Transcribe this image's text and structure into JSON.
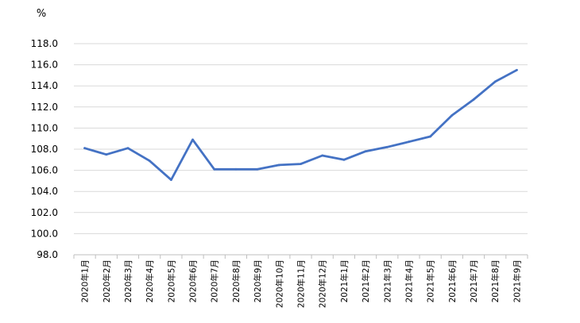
{
  "chart_data": {
    "type": "line",
    "unit_label": "%",
    "title": "",
    "xlabel": "",
    "ylabel": "",
    "ylim": [
      98.0,
      118.0
    ],
    "y_ticks": [
      "98.0",
      "100.0",
      "102.0",
      "104.0",
      "106.0",
      "108.0",
      "110.0",
      "112.0",
      "114.0",
      "116.0",
      "118.0"
    ],
    "categories": [
      "2020年1月",
      "2020年2月",
      "2020年3月",
      "2020年4月",
      "2020年5月",
      "2020年6月",
      "2020年7月",
      "2020年8月",
      "2020年9月",
      "2020年10月",
      "2020年11月",
      "2020年12月",
      "2021年1月",
      "2021年2月",
      "2021年3月",
      "2021年4月",
      "2021年5月",
      "2021年6月",
      "2021年7月",
      "2021年8月",
      "2021年9月"
    ],
    "series": [
      {
        "values": [
          108.1,
          107.5,
          108.1,
          106.9,
          105.1,
          108.9,
          106.1,
          106.1,
          106.1,
          106.5,
          106.6,
          107.4,
          107.0,
          107.8,
          108.2,
          108.7,
          109.2,
          111.2,
          112.7,
          114.4,
          115.5
        ],
        "color": "#4472C4"
      }
    ],
    "grid": true,
    "gridline_color": "#d9d9d9"
  }
}
